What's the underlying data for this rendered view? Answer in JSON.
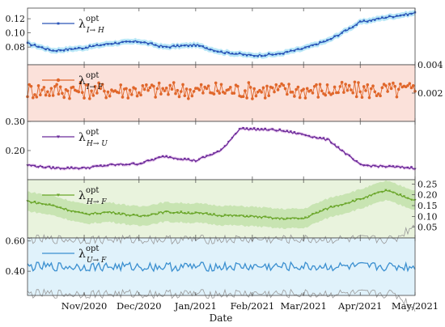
{
  "chart_data": {
    "type": "line",
    "xlabel": "Date",
    "x_range": [
      "2020-10-01",
      "2021-05-01"
    ],
    "x_ticks": [
      {
        "date": "2020-11-01",
        "label": "Nov/2020"
      },
      {
        "date": "2020-12-01",
        "label": "Dec/2020"
      },
      {
        "date": "2021-01-01",
        "label": "Jan/2021"
      },
      {
        "date": "2021-02-01",
        "label": "Feb/2021"
      },
      {
        "date": "2021-03-01",
        "label": "Mar/2021"
      },
      {
        "date": "2021-04-01",
        "label": "Apr/2021"
      },
      {
        "date": "2021-05-01",
        "label": "May/2021"
      }
    ],
    "panels": [
      {
        "id": "IH",
        "legend": {
          "sym": "λ",
          "sup": "opt",
          "sub": "I→ H"
        },
        "legend_position": "top-left",
        "axis_side": "left",
        "ylim": [
          0.055,
          0.135
        ],
        "yticks": [
          0.08,
          0.1,
          0.12
        ],
        "ytick_labels": [
          "0.08",
          "0.10",
          "0.12"
        ],
        "color": "#2a55b8",
        "band_color": "#7fd4f0",
        "fill": "#ffffff",
        "marker": "square",
        "x_dates": [
          "2020-10-01",
          "2020-10-15",
          "2020-11-01",
          "2020-11-15",
          "2020-12-01",
          "2020-12-15",
          "2021-01-01",
          "2021-01-15",
          "2021-02-01",
          "2021-02-15",
          "2021-03-01",
          "2021-03-15",
          "2021-04-01",
          "2021-04-15",
          "2021-05-01"
        ],
        "values": [
          0.085,
          0.075,
          0.079,
          0.085,
          0.088,
          0.08,
          0.083,
          0.073,
          0.068,
          0.07,
          0.078,
          0.09,
          0.115,
          0.122,
          0.128
        ],
        "band_width": 0.004
      },
      {
        "id": "IF",
        "legend": {
          "sym": "λ",
          "sup": "opt",
          "sub": "I→ F"
        },
        "legend_position": "top-left",
        "axis_side": "right",
        "ylim": [
          0.0,
          0.004
        ],
        "yticks": [
          0.002,
          0.004
        ],
        "ytick_labels": [
          "0.002",
          "0.004"
        ],
        "color": "#e0662a",
        "band_color": "#7fcfb0",
        "fill": "#fbe1da",
        "marker": "circle",
        "x_dates": [
          "2020-10-01",
          "2021-05-01"
        ],
        "values": [
          0.0022,
          0.0022
        ],
        "band_width": 0.0
      },
      {
        "id": "HU",
        "legend": {
          "sym": "λ",
          "sup": "opt",
          "sub": "H→ U"
        },
        "legend_position": "top-left",
        "axis_side": "left",
        "ylim": [
          0.1,
          0.3
        ],
        "yticks": [
          0.2,
          0.3
        ],
        "ytick_labels": [
          "0.20",
          "0.30"
        ],
        "color": "#6a2a9a",
        "band_color": "#e3b2e6",
        "fill": "#ffffff",
        "marker": "triangle",
        "x_dates": [
          "2020-10-01",
          "2020-10-15",
          "2020-11-01",
          "2020-11-15",
          "2020-12-01",
          "2020-12-15",
          "2021-01-01",
          "2021-01-15",
          "2021-01-25",
          "2021-02-15",
          "2021-03-01",
          "2021-03-15",
          "2021-04-01",
          "2021-04-15",
          "2021-05-01"
        ],
        "values": [
          0.15,
          0.14,
          0.14,
          0.15,
          0.155,
          0.18,
          0.165,
          0.2,
          0.275,
          0.27,
          0.255,
          0.235,
          0.15,
          0.145,
          0.14
        ],
        "band_width": 0.006
      },
      {
        "id": "HF",
        "legend": {
          "sym": "λ",
          "sup": "opt",
          "sub": "H→ F"
        },
        "legend_position": "top-left",
        "axis_side": "right",
        "ylim": [
          0.0,
          0.27
        ],
        "yticks": [
          0.05,
          0.1,
          0.15,
          0.2,
          0.25
        ],
        "ytick_labels": [
          "0.05",
          "0.10",
          "0.15",
          "0.20",
          "0.25"
        ],
        "color": "#6aa62a",
        "band_color": "#8cc860",
        "fill": "#e9f3dd",
        "marker": "triangle",
        "x_dates": [
          "2020-10-01",
          "2020-10-15",
          "2020-11-01",
          "2020-11-15",
          "2020-12-01",
          "2020-12-15",
          "2021-01-01",
          "2021-01-15",
          "2021-02-01",
          "2021-02-15",
          "2021-03-01",
          "2021-03-15",
          "2021-04-01",
          "2021-04-15",
          "2021-05-01"
        ],
        "values": [
          0.17,
          0.15,
          0.11,
          0.12,
          0.1,
          0.12,
          0.115,
          0.105,
          0.1,
          0.09,
          0.09,
          0.14,
          0.18,
          0.22,
          0.175
        ],
        "band_width": 0.045
      },
      {
        "id": "UF",
        "legend": {
          "sym": "λ",
          "sup": "opt",
          "sub": "U→ F"
        },
        "legend_position": "top-left",
        "axis_side": "left",
        "ylim": [
          0.24,
          0.62
        ],
        "yticks": [
          0.4,
          0.6
        ],
        "ytick_labels": [
          "0.40",
          "0.60"
        ],
        "color": "#3a8fd0",
        "band_color": "#999999",
        "fill": "#e0f2fb",
        "marker": "none",
        "x_dates": [
          "2020-10-01",
          "2021-05-01"
        ],
        "values": [
          0.43,
          0.43
        ],
        "band_width": 0.18
      }
    ]
  }
}
